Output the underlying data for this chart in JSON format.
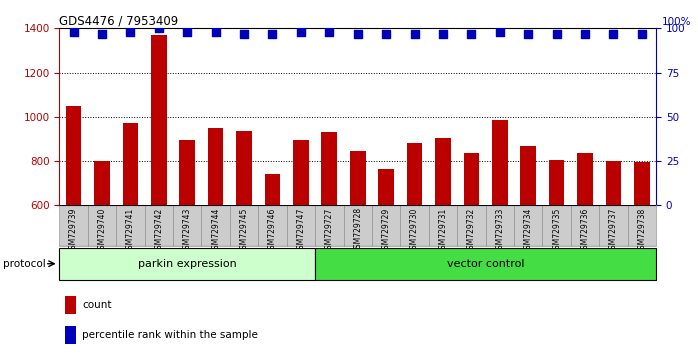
{
  "title": "GDS4476 / 7953409",
  "samples": [
    "GSM729739",
    "GSM729740",
    "GSM729741",
    "GSM729742",
    "GSM729743",
    "GSM729744",
    "GSM729745",
    "GSM729746",
    "GSM729747",
    "GSM729727",
    "GSM729728",
    "GSM729729",
    "GSM729730",
    "GSM729731",
    "GSM729732",
    "GSM729733",
    "GSM729734",
    "GSM729735",
    "GSM729736",
    "GSM729737",
    "GSM729738"
  ],
  "counts": [
    1047,
    802,
    972,
    1370,
    893,
    949,
    937,
    743,
    897,
    932,
    847,
    762,
    882,
    903,
    835,
    985,
    866,
    803,
    836,
    802,
    795
  ],
  "percentile_ranks": [
    98,
    97,
    98,
    100,
    98,
    98,
    97,
    97,
    98,
    98,
    97,
    97,
    97,
    97,
    97,
    98,
    97,
    97,
    97,
    97,
    97
  ],
  "group1_label": "parkin expression",
  "group2_label": "vector control",
  "group1_count": 9,
  "group2_count": 12,
  "protocol_label": "protocol",
  "count_label": "count",
  "percentile_label": "percentile rank within the sample",
  "ylim_left": [
    600,
    1400
  ],
  "ylim_right": [
    0,
    100
  ],
  "yticks_left": [
    600,
    800,
    1000,
    1200,
    1400
  ],
  "yticks_right": [
    0,
    25,
    50,
    75,
    100
  ],
  "bar_color": "#bb0000",
  "dot_color": "#0000bb",
  "group1_bg": "#ccffcc",
  "group2_bg": "#44dd44",
  "header_bg": "#cccccc",
  "grid_values": [
    800,
    1000,
    1200
  ],
  "dot_size": 35,
  "bar_bottom": 600
}
